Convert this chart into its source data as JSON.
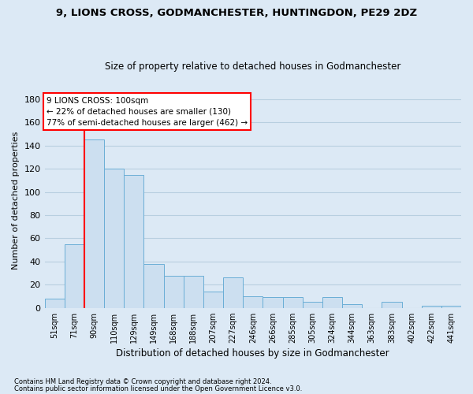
{
  "title1": "9, LIONS CROSS, GODMANCHESTER, HUNTINGDON, PE29 2DZ",
  "title2": "Size of property relative to detached houses in Godmanchester",
  "xlabel": "Distribution of detached houses by size in Godmanchester",
  "ylabel": "Number of detached properties",
  "footnote1": "Contains HM Land Registry data © Crown copyright and database right 2024.",
  "footnote2": "Contains public sector information licensed under the Open Government Licence v3.0.",
  "categories": [
    "51sqm",
    "71sqm",
    "90sqm",
    "110sqm",
    "129sqm",
    "149sqm",
    "168sqm",
    "188sqm",
    "207sqm",
    "227sqm",
    "246sqm",
    "266sqm",
    "285sqm",
    "305sqm",
    "324sqm",
    "344sqm",
    "363sqm",
    "383sqm",
    "402sqm",
    "422sqm",
    "441sqm"
  ],
  "values": [
    8,
    55,
    145,
    120,
    115,
    38,
    28,
    28,
    14,
    26,
    10,
    9,
    9,
    5,
    9,
    3,
    0,
    5,
    0,
    2,
    2
  ],
  "bar_color": "#ccdff0",
  "bar_edge_color": "#6aaed6",
  "vline_x_index": 2,
  "vline_color": "red",
  "annotation_line1": "9 LIONS CROSS: 100sqm",
  "annotation_line2": "← 22% of detached houses are smaller (130)",
  "annotation_line3": "77% of semi-detached houses are larger (462) →",
  "annotation_box_color": "white",
  "annotation_box_edge": "red",
  "ylim": [
    0,
    185
  ],
  "yticks": [
    0,
    20,
    40,
    60,
    80,
    100,
    120,
    140,
    160,
    180
  ],
  "background_color": "#dce9f5",
  "plot_bg_color": "#dce9f5",
  "grid_color": "#b8cfe0",
  "title1_fontsize": 9.5,
  "title2_fontsize": 8.5
}
